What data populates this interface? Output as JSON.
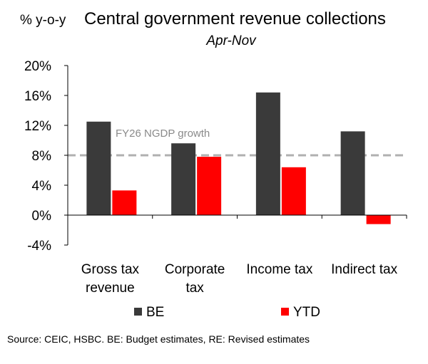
{
  "chart_data": {
    "type": "bar",
    "unit_label": "% y-o-y",
    "title": "Central government revenue collections",
    "subtitle": "Apr-Nov",
    "categories": [
      [
        "Gross tax",
        "revenue"
      ],
      [
        "Corporate",
        "tax"
      ],
      [
        "Income tax"
      ],
      [
        "Indirect tax"
      ]
    ],
    "series": [
      {
        "name": "BE",
        "color": "#3a3a3a",
        "values": [
          12.5,
          9.6,
          16.4,
          11.2
        ]
      },
      {
        "name": "YTD",
        "color": "#ff0000",
        "values": [
          3.3,
          7.8,
          6.4,
          -1.2
        ]
      }
    ],
    "yticks": [
      20,
      16,
      12,
      8,
      4,
      0,
      -4
    ],
    "ytick_labels": [
      "20%",
      "16%",
      "12%",
      "8%",
      "4%",
      "0%",
      "-4%"
    ],
    "ylim": [
      -4,
      20
    ],
    "reference_line": {
      "value": 8,
      "label": "FY26 NGDP growth",
      "color": "#b0b0b0"
    },
    "legend_position": "bottom"
  },
  "source": "Source: CEIC, HSBC. BE: Budget estimates, RE: Revised estimates"
}
